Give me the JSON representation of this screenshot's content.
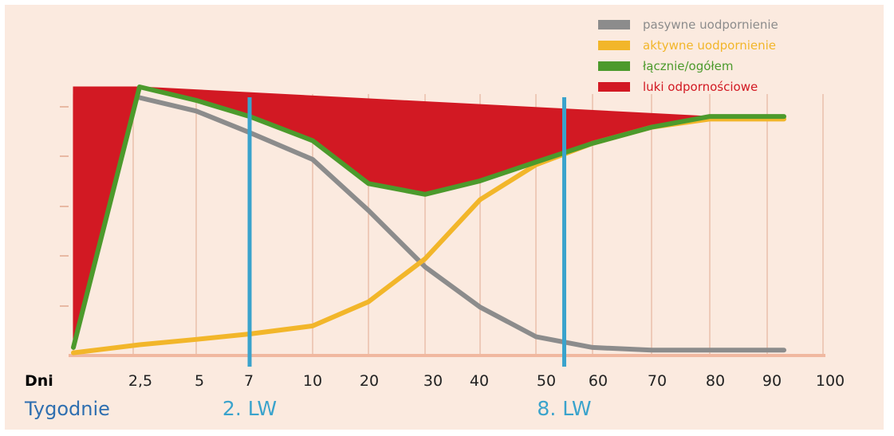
{
  "chart_data": {
    "type": "area",
    "xlabel": "Dni",
    "x2label": "Tygodnie",
    "tick_labels": [
      "2,5",
      "5",
      "7",
      "10",
      "20",
      "30",
      "40",
      "50",
      "60",
      "70",
      "80",
      "90",
      "100"
    ],
    "grid": true,
    "legend_position": "top-right",
    "series": [
      {
        "name": "pasywne uodpornienie",
        "color": "#8c8c8c",
        "points": [
          [
            2.5,
            0.96
          ],
          [
            5,
            0.91
          ],
          [
            7,
            0.83
          ],
          [
            10,
            0.73
          ],
          [
            20,
            0.54
          ],
          [
            30,
            0.33
          ],
          [
            40,
            0.18
          ],
          [
            50,
            0.07
          ],
          [
            60,
            0.03
          ],
          [
            70,
            0.02
          ],
          [
            80,
            0.02
          ],
          [
            90,
            0.02
          ],
          [
            93,
            0.02
          ]
        ]
      },
      {
        "name": "aktywne uodpornienie",
        "color": "#f2b62a",
        "points": [
          [
            0,
            0.01
          ],
          [
            2.5,
            0.04
          ],
          [
            5,
            0.06
          ],
          [
            7,
            0.08
          ],
          [
            10,
            0.11
          ],
          [
            20,
            0.2
          ],
          [
            30,
            0.36
          ],
          [
            40,
            0.58
          ],
          [
            50,
            0.71
          ],
          [
            60,
            0.79
          ],
          [
            70,
            0.85
          ],
          [
            80,
            0.88
          ],
          [
            90,
            0.88
          ],
          [
            93,
            0.88
          ]
        ]
      },
      {
        "name": "łącznie/ogółem",
        "color": "#4c9a2c",
        "points": [
          [
            0,
            0.03
          ],
          [
            2.5,
            1.0
          ],
          [
            5,
            0.95
          ],
          [
            7,
            0.89
          ],
          [
            10,
            0.8
          ],
          [
            20,
            0.64
          ],
          [
            30,
            0.6
          ],
          [
            40,
            0.65
          ],
          [
            50,
            0.72
          ],
          [
            60,
            0.79
          ],
          [
            70,
            0.85
          ],
          [
            80,
            0.89
          ],
          [
            90,
            0.89
          ],
          [
            93,
            0.89
          ]
        ]
      },
      {
        "name": "luki odpornościowe",
        "color": "#d21923",
        "points": [
          [
            0,
            1.0
          ],
          [
            2.5,
            1.0
          ],
          [
            80,
            0.89
          ]
        ]
      }
    ],
    "annotations": [
      {
        "label": "2. LW",
        "x": 7,
        "color": "#3aa3cc"
      },
      {
        "label": "8. LW",
        "x": 55,
        "color": "#3aa3cc"
      }
    ]
  }
}
